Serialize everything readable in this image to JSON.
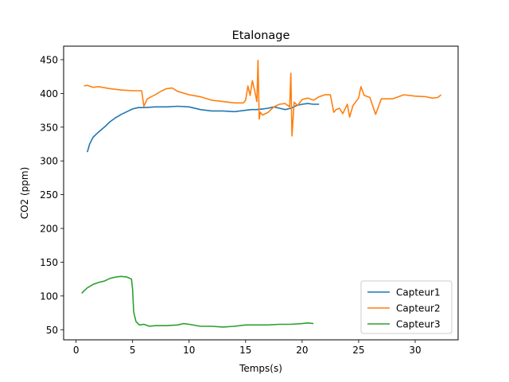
{
  "chart_data": {
    "type": "line",
    "title": "Etalonage",
    "xlabel": "Temps(s)",
    "ylabel": "CO2 (ppm)",
    "xlim": [
      -1.1,
      33.8
    ],
    "ylim": [
      35,
      470
    ],
    "xticks": [
      0,
      5,
      10,
      15,
      20,
      25,
      30
    ],
    "yticks": [
      50,
      100,
      150,
      200,
      250,
      300,
      350,
      400,
      450
    ],
    "grid": false,
    "legend_position": "lower right",
    "series": [
      {
        "name": "Capteur1",
        "color": "#1f77b4",
        "x": [
          1.0,
          1.2,
          1.5,
          2.0,
          2.5,
          3.0,
          3.5,
          4.0,
          4.5,
          5.0,
          5.5,
          6.0,
          7.0,
          8.0,
          9.0,
          10.0,
          11.0,
          12.0,
          13.0,
          14.0,
          15.0,
          15.5,
          16.0,
          16.5,
          17.0,
          17.5,
          18.0,
          18.5,
          19.0,
          19.5,
          20.0,
          20.5,
          21.0,
          21.5
        ],
        "y": [
          313,
          325,
          335,
          343,
          350,
          358,
          364,
          369,
          373,
          377,
          379,
          379,
          380,
          380,
          381,
          380,
          376,
          374,
          374,
          373,
          375,
          376,
          376,
          377,
          378,
          380,
          378,
          376,
          378,
          382,
          384,
          385,
          384,
          384
        ]
      },
      {
        "name": "Capteur2",
        "color": "#ff7f0e",
        "x": [
          0.7,
          1.0,
          1.5,
          2.0,
          3.0,
          4.0,
          5.0,
          5.8,
          6.0,
          6.3,
          7.0,
          7.5,
          8.0,
          8.5,
          9.0,
          10.0,
          11.0,
          12.0,
          13.0,
          14.0,
          14.8,
          15.0,
          15.2,
          15.4,
          15.6,
          15.8,
          16.0,
          16.1,
          16.2,
          16.3,
          16.5,
          17.0,
          17.5,
          18.0,
          18.5,
          18.9,
          19.0,
          19.1,
          19.3,
          19.6,
          20.0,
          20.5,
          21.0,
          21.5,
          22.0,
          22.5,
          22.8,
          23.0,
          23.3,
          23.6,
          24.0,
          24.2,
          24.5,
          25.0,
          25.2,
          25.5,
          26.0,
          26.5,
          27.0,
          28.0,
          29.0,
          30.0,
          31.0,
          31.5,
          32.0,
          32.3
        ],
        "y": [
          411,
          412,
          409,
          410,
          407,
          405,
          404,
          404,
          381,
          392,
          398,
          403,
          407,
          408,
          403,
          398,
          395,
          390,
          388,
          386,
          386,
          390,
          411,
          397,
          419,
          404,
          388,
          449,
          362,
          372,
          368,
          372,
          380,
          384,
          385,
          380,
          430,
          337,
          387,
          382,
          391,
          393,
          390,
          395,
          398,
          398,
          372,
          376,
          378,
          370,
          384,
          365,
          382,
          393,
          410,
          397,
          394,
          369,
          392,
          392,
          398,
          396,
          395,
          393,
          394,
          398
        ]
      },
      {
        "name": "Capteur3",
        "color": "#2ca02c",
        "x": [
          0.5,
          0.8,
          1.0,
          1.5,
          2.0,
          2.5,
          3.0,
          3.5,
          4.0,
          4.5,
          4.9,
          5.0,
          5.1,
          5.3,
          5.6,
          6.0,
          6.5,
          7.0,
          8.0,
          9.0,
          9.5,
          10.0,
          11.0,
          12.0,
          13.0,
          14.0,
          15.0,
          16.0,
          17.0,
          18.0,
          19.0,
          20.0,
          20.5,
          21.0
        ],
        "y": [
          104,
          109,
          112,
          117,
          120,
          122,
          126,
          128,
          129,
          128,
          125,
          110,
          76,
          62,
          57,
          58,
          55,
          56,
          56,
          57,
          59,
          58,
          55,
          55,
          54,
          55,
          57,
          57,
          57,
          58,
          58,
          59,
          60,
          59
        ]
      }
    ]
  }
}
